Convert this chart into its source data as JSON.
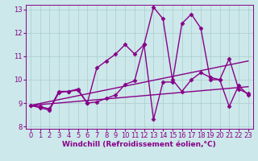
{
  "xlabel": "Windchill (Refroidissement éolien,°C)",
  "background_color": "#cce8ea",
  "grid_color": "#aacccc",
  "line_color": "#880088",
  "xlim": [
    -0.5,
    23.5
  ],
  "ylim": [
    7.9,
    13.2
  ],
  "yticks": [
    8,
    9,
    10,
    11,
    12,
    13
  ],
  "xticks": [
    0,
    1,
    2,
    3,
    4,
    5,
    6,
    7,
    8,
    9,
    10,
    11,
    12,
    13,
    14,
    15,
    16,
    17,
    18,
    19,
    20,
    21,
    22,
    23
  ],
  "series": [
    {
      "x": [
        0,
        1,
        2,
        3,
        4,
        5,
        6,
        7,
        8,
        9,
        10,
        11,
        12,
        13,
        14,
        15,
        16,
        17,
        18,
        19,
        20,
        21,
        22,
        23
      ],
      "y": [
        8.9,
        8.85,
        8.75,
        9.5,
        9.5,
        9.55,
        9.0,
        10.5,
        10.8,
        11.1,
        11.5,
        11.1,
        11.5,
        13.1,
        12.6,
        10.0,
        9.5,
        10.0,
        10.3,
        10.1,
        10.0,
        10.9,
        9.6,
        9.4
      ]
    },
    {
      "x": [
        0,
        1,
        2,
        3,
        4,
        5,
        6,
        7,
        8,
        9,
        10,
        11,
        12,
        13,
        14,
        15,
        16,
        17,
        18,
        19,
        20,
        21,
        22,
        23
      ],
      "y": [
        8.9,
        8.8,
        8.7,
        9.45,
        9.5,
        9.6,
        9.0,
        9.05,
        9.2,
        9.35,
        9.8,
        9.95,
        11.5,
        8.3,
        9.9,
        9.9,
        12.4,
        12.8,
        12.2,
        10.0,
        10.0,
        8.85,
        9.75,
        9.35
      ]
    },
    {
      "x": [
        0,
        23
      ],
      "y": [
        8.9,
        10.8
      ]
    },
    {
      "x": [
        0,
        23
      ],
      "y": [
        8.9,
        9.7
      ]
    }
  ],
  "marker": "D",
  "markersize": 2.5,
  "linewidth": 1.0,
  "xlabel_fontsize": 6.5,
  "tick_fontsize": 6.0
}
